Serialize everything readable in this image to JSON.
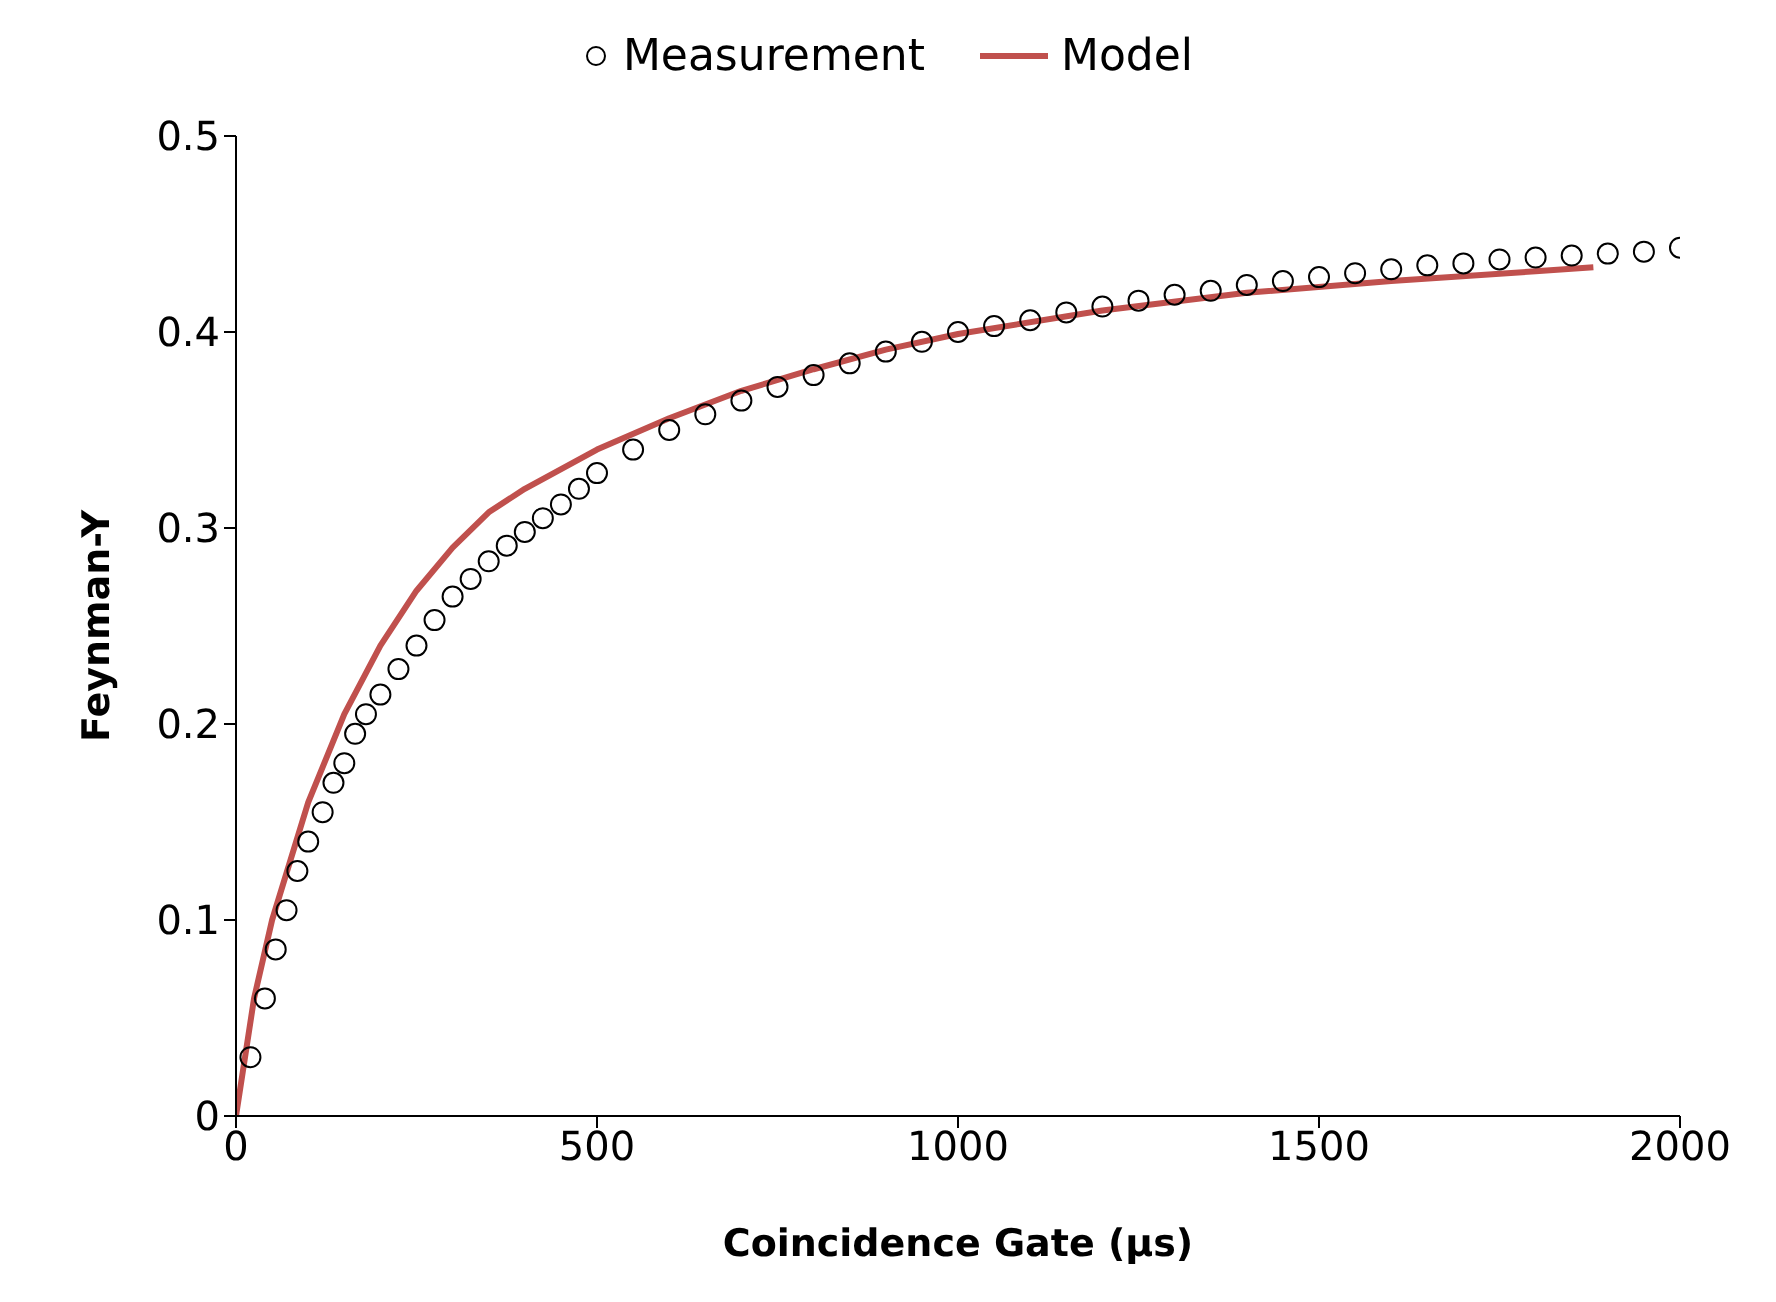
{
  "chart_data": {
    "type": "scatter",
    "xlabel": "Coincidence Gate (µs)",
    "ylabel": "Feynman-Y",
    "xlim": [
      0,
      2000
    ],
    "ylim": [
      0,
      0.5
    ],
    "xticks": [
      0,
      500,
      1000,
      1500,
      2000
    ],
    "yticks": [
      0,
      0.1,
      0.2,
      0.3,
      0.4,
      0.5
    ],
    "grid": false,
    "legend": "top",
    "series": [
      {
        "name": "Measurement",
        "marker": "circle",
        "color": "#000000",
        "x": [
          20,
          40,
          55,
          70,
          85,
          100,
          120,
          135,
          150,
          165,
          180,
          200,
          225,
          250,
          275,
          300,
          325,
          350,
          375,
          400,
          425,
          450,
          475,
          500,
          550,
          600,
          650,
          700,
          750,
          800,
          850,
          900,
          950,
          1000,
          1050,
          1100,
          1150,
          1200,
          1250,
          1300,
          1350,
          1400,
          1450,
          1500,
          1550,
          1600,
          1650,
          1700,
          1750,
          1800,
          1850,
          1900,
          1950,
          2000
        ],
        "values": [
          0.03,
          0.06,
          0.085,
          0.105,
          0.125,
          0.14,
          0.155,
          0.17,
          0.18,
          0.195,
          0.205,
          0.215,
          0.228,
          0.24,
          0.253,
          0.265,
          0.274,
          0.283,
          0.291,
          0.298,
          0.305,
          0.312,
          0.32,
          0.328,
          0.34,
          0.35,
          0.358,
          0.365,
          0.372,
          0.378,
          0.384,
          0.39,
          0.395,
          0.4,
          0.403,
          0.406,
          0.41,
          0.413,
          0.416,
          0.419,
          0.421,
          0.424,
          0.426,
          0.428,
          0.43,
          0.432,
          0.434,
          0.435,
          0.437,
          0.438,
          0.439,
          0.44,
          0.441,
          0.443
        ]
      },
      {
        "name": "Model",
        "type": "line",
        "marker": "none",
        "color": "#c0504d",
        "line_style": "solid",
        "x": [
          0,
          25,
          50,
          100,
          150,
          200,
          250,
          300,
          350,
          400,
          500,
          600,
          700,
          800,
          900,
          1000,
          1200,
          1400,
          1600,
          1800,
          1880
        ],
        "values": [
          0,
          0.06,
          0.1,
          0.16,
          0.205,
          0.24,
          0.268,
          0.29,
          0.308,
          0.32,
          0.34,
          0.356,
          0.37,
          0.381,
          0.391,
          0.399,
          0.411,
          0.42,
          0.426,
          0.431,
          0.433
        ]
      }
    ]
  }
}
